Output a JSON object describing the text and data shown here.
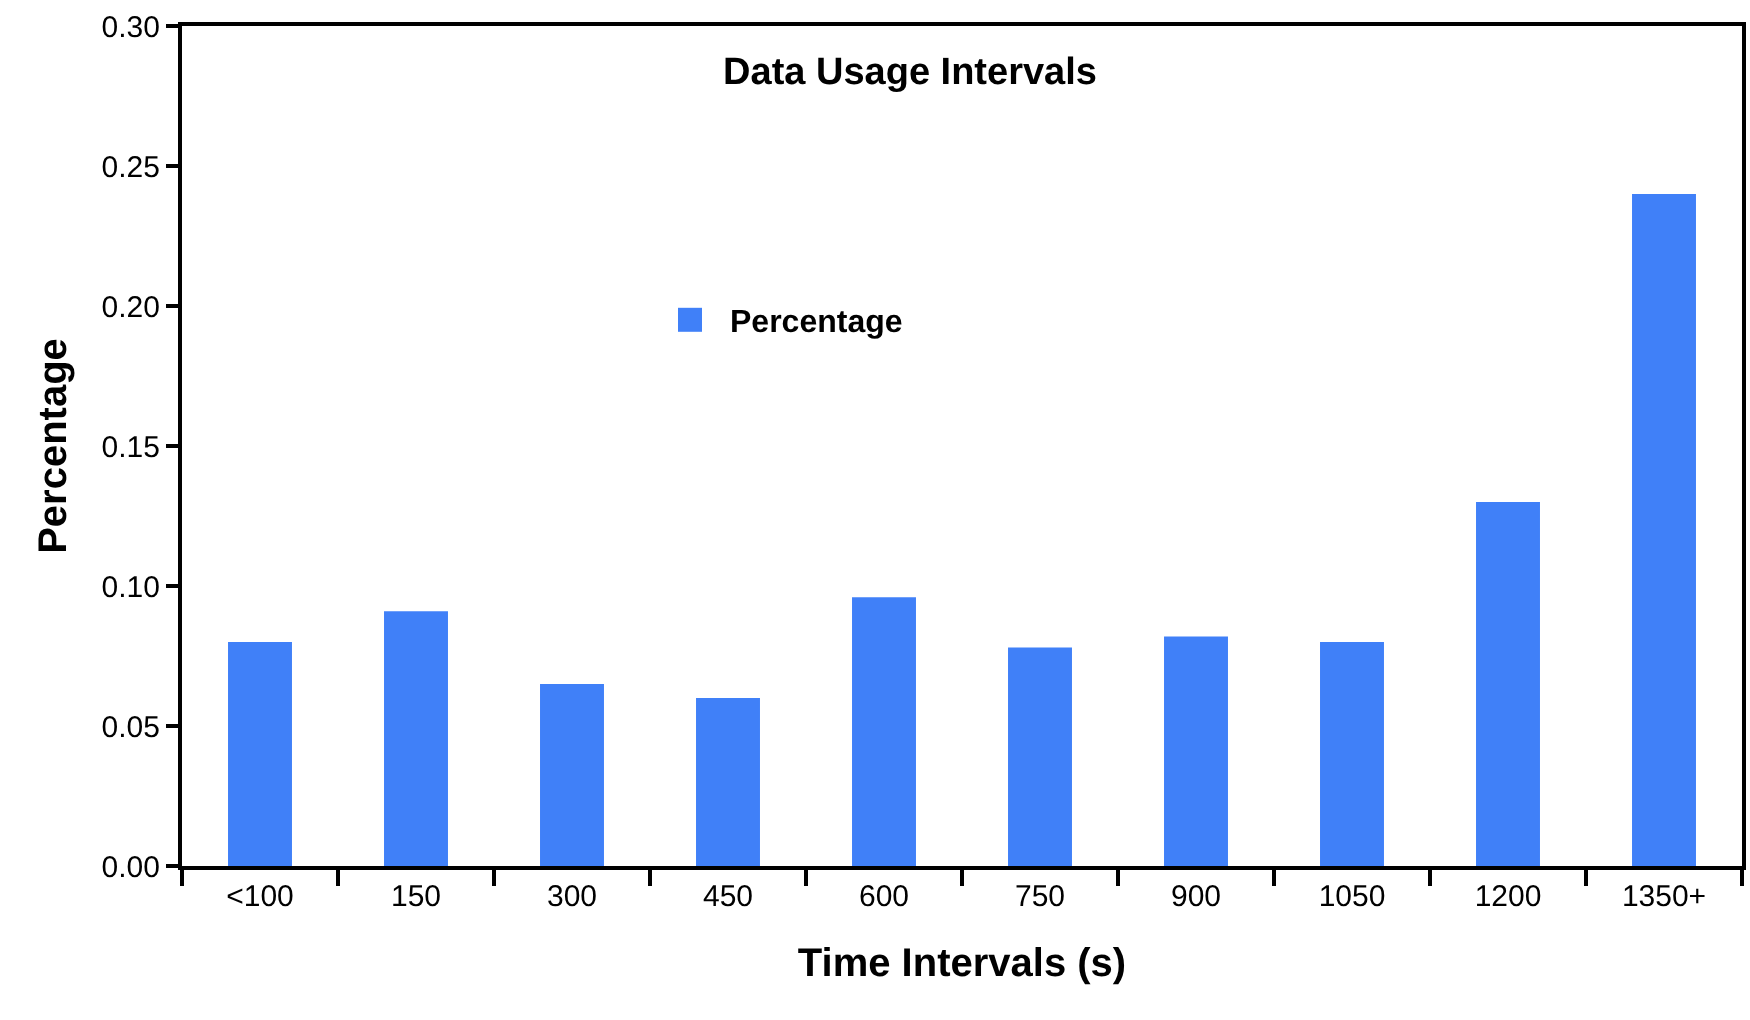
{
  "chart_data": {
    "type": "bar",
    "title": "Data Usage Intervals",
    "xlabel": "Time Intervals (s)",
    "ylabel": "Percentage",
    "categories": [
      "<100",
      "150",
      "300",
      "450",
      "600",
      "750",
      "900",
      "1050",
      "1200",
      "1350+"
    ],
    "series": [
      {
        "name": "Percentage",
        "color": "#4080f8",
        "values": [
          0.08,
          0.091,
          0.065,
          0.06,
          0.096,
          0.078,
          0.082,
          0.08,
          0.13,
          0.24
        ]
      }
    ],
    "ylim": [
      0,
      0.3
    ],
    "yticks": [
      {
        "value": 0,
        "label": "0.00"
      },
      {
        "value": 0.05,
        "label": "0.05"
      },
      {
        "value": 0.1,
        "label": "0.10"
      },
      {
        "value": 0.15,
        "label": "0.15"
      },
      {
        "value": 0.2,
        "label": "0.20"
      },
      {
        "value": 0.25,
        "label": "0.25"
      },
      {
        "value": 0.3,
        "label": "0.30"
      }
    ],
    "grid": false,
    "legend": "top left"
  }
}
